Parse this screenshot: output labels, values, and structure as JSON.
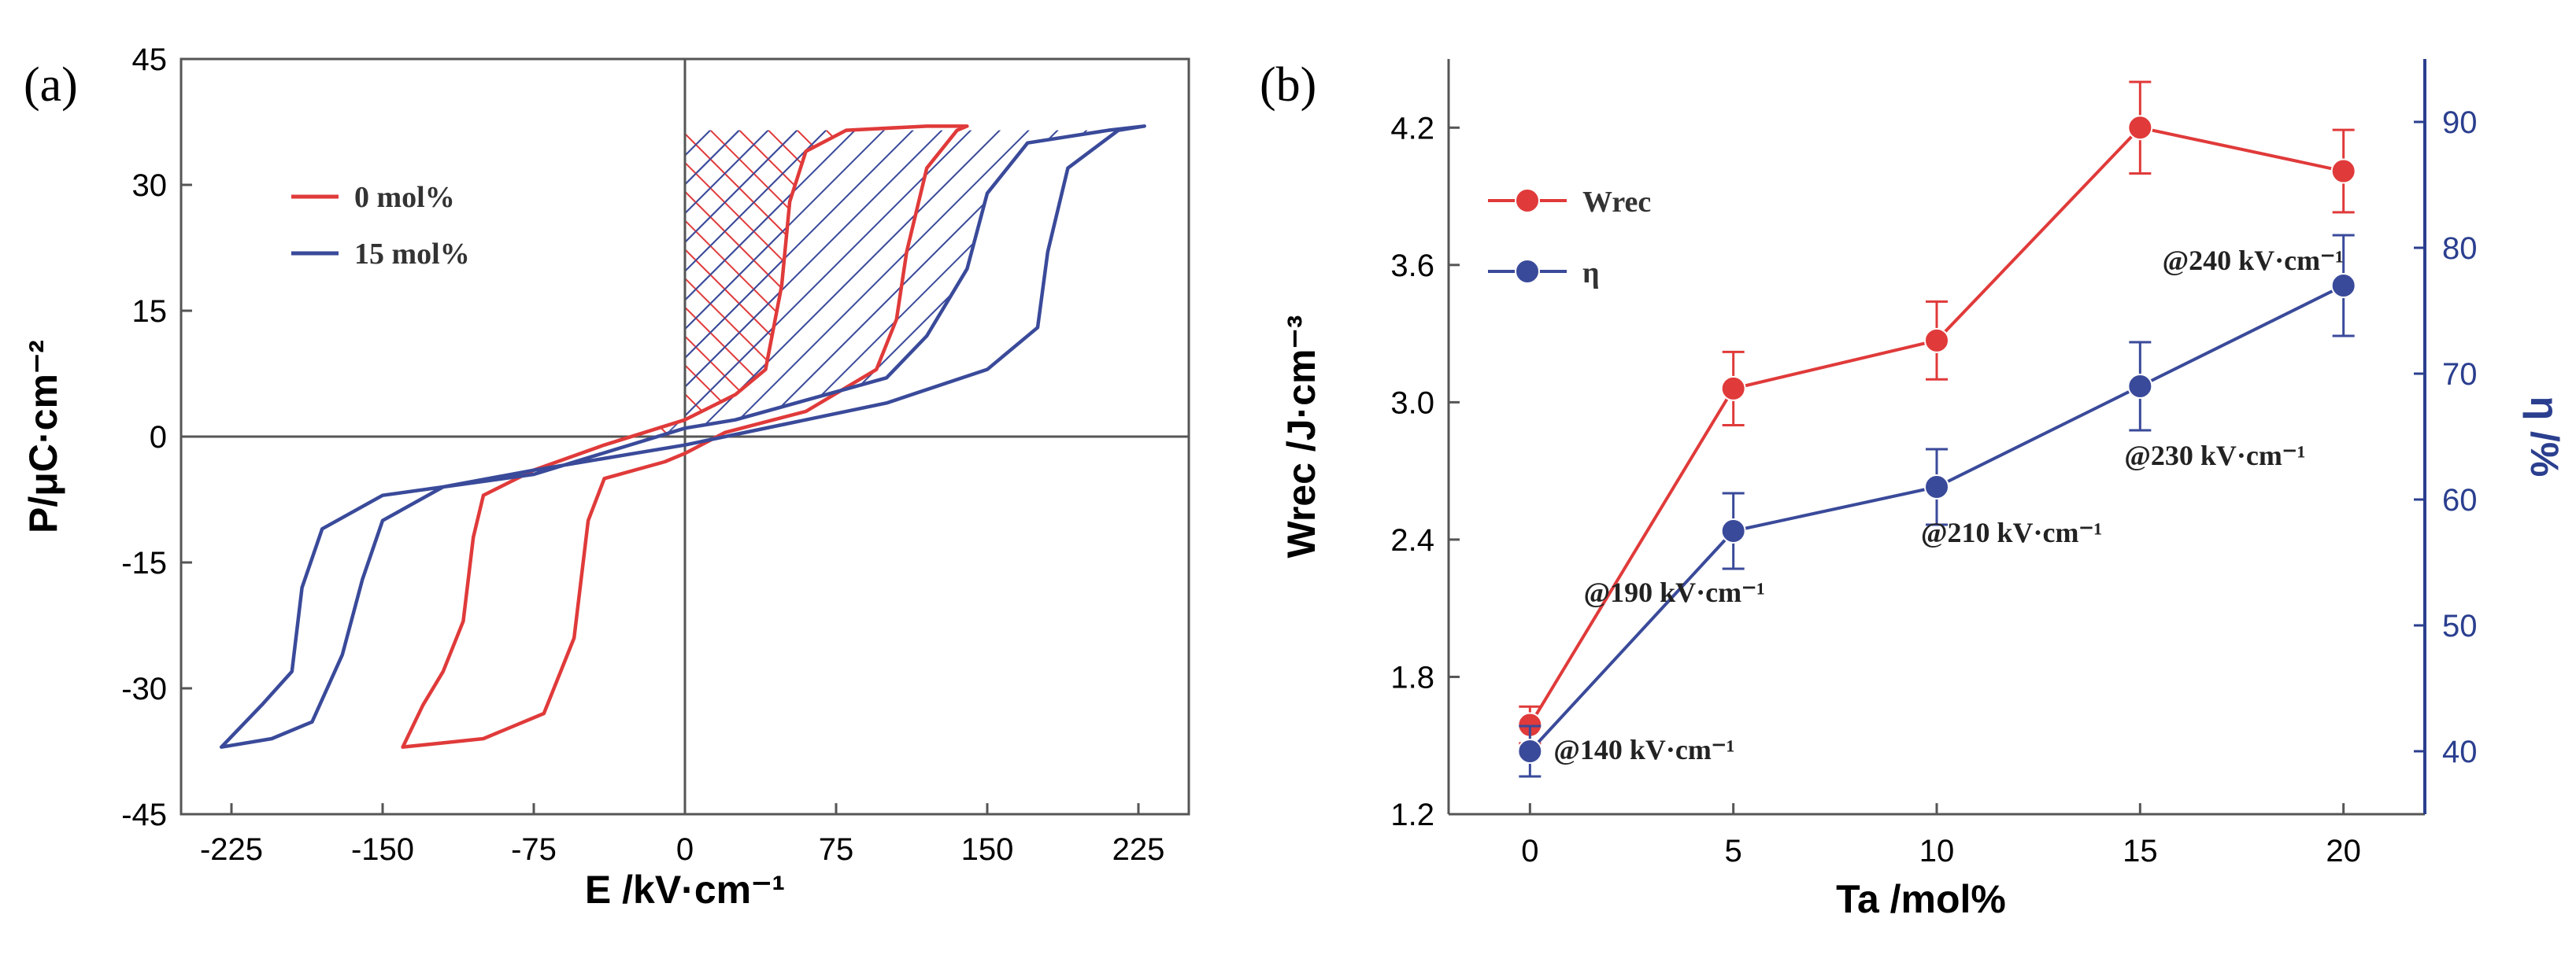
{
  "chart_data": [
    {
      "panel": "(a)",
      "type": "line",
      "title": "",
      "xlabel": "E /kV·cm⁻¹",
      "ylabel": "P/μC·cm⁻²",
      "xlim": [
        -250,
        250
      ],
      "ylim": [
        -45,
        45
      ],
      "xticks": [
        -225,
        -150,
        -75,
        0,
        75,
        150,
        225
      ],
      "yticks": [
        -45,
        -30,
        -15,
        0,
        15,
        30,
        45
      ],
      "legend_position": "upper-left",
      "series": [
        {
          "name": "0 mol%",
          "color": "#e03a3a",
          "upper": [
            [
              -140,
              -37
            ],
            [
              -120,
              -36.5
            ],
            [
              -100,
              -36
            ],
            [
              -70,
              -33
            ],
            [
              -55,
              -24
            ],
            [
              -48,
              -10
            ],
            [
              -40,
              -5
            ],
            [
              -10,
              -3
            ],
            [
              0,
              -2
            ],
            [
              20,
              0.5
            ],
            [
              60,
              3
            ],
            [
              95,
              8
            ],
            [
              105,
              14
            ],
            [
              110,
              22
            ],
            [
              120,
              32
            ],
            [
              135,
              36.5
            ],
            [
              140,
              37
            ]
          ],
          "lower": [
            [
              -140,
              -37
            ],
            [
              -130,
              -32
            ],
            [
              -120,
              -28
            ],
            [
              -110,
              -22
            ],
            [
              -105,
              -12
            ],
            [
              -100,
              -7
            ],
            [
              -75,
              -4
            ],
            [
              -40,
              -1
            ],
            [
              0,
              2
            ],
            [
              25,
              5
            ],
            [
              40,
              8
            ],
            [
              48,
              18
            ],
            [
              52,
              28
            ],
            [
              60,
              34
            ],
            [
              80,
              36.5
            ],
            [
              120,
              37
            ],
            [
              140,
              37
            ]
          ]
        },
        {
          "name": "15 mol%",
          "color": "#3a4a9a",
          "upper": [
            [
              -230,
              -37
            ],
            [
              -205,
              -36
            ],
            [
              -185,
              -34
            ],
            [
              -170,
              -26
            ],
            [
              -160,
              -17
            ],
            [
              -150,
              -10
            ],
            [
              -120,
              -6
            ],
            [
              -75,
              -4
            ],
            [
              -25,
              -2
            ],
            [
              0,
              -1
            ],
            [
              50,
              1.5
            ],
            [
              100,
              4
            ],
            [
              150,
              8
            ],
            [
              175,
              13
            ],
            [
              180,
              22
            ],
            [
              190,
              32
            ],
            [
              215,
              36.5
            ],
            [
              228,
              37
            ]
          ],
          "lower": [
            [
              -230,
              -37
            ],
            [
              -210,
              -32
            ],
            [
              -195,
              -28
            ],
            [
              -190,
              -18
            ],
            [
              -180,
              -11
            ],
            [
              -150,
              -7
            ],
            [
              -75,
              -4.5
            ],
            [
              0,
              1
            ],
            [
              25,
              2
            ],
            [
              100,
              7
            ],
            [
              120,
              12
            ],
            [
              140,
              20
            ],
            [
              150,
              29
            ],
            [
              170,
              35
            ],
            [
              210,
              36.5
            ],
            [
              228,
              37
            ]
          ]
        }
      ],
      "hatched_regions": [
        {
          "series": "0 mol%",
          "pattern": "cross-hatch",
          "color": "#e03a3a",
          "p_max": 36.5,
          "e_max": 140
        },
        {
          "series": "15 mol%",
          "pattern": "diagonal-hatch",
          "color": "#3a4a9a",
          "p_max": 36.5,
          "e_max": 228
        }
      ]
    },
    {
      "panel": "(b)",
      "type": "line",
      "title": "",
      "xlabel": "Ta /mol%",
      "ylabel_left": "Wrec /J·cm⁻³",
      "ylabel_right": "η /%",
      "x": [
        0,
        5,
        10,
        15,
        20
      ],
      "xticks": [
        0,
        5,
        10,
        15,
        20
      ],
      "xlim": [
        -2,
        22
      ],
      "ylim_left": [
        1.2,
        4.5
      ],
      "yticks_left": [
        1.2,
        1.8,
        2.4,
        3.0,
        3.6,
        4.2
      ],
      "ylim_right": [
        35,
        95
      ],
      "yticks_right": [
        40,
        50,
        60,
        70,
        80,
        90
      ],
      "legend_position": "upper-left",
      "series": [
        {
          "name": "Wrec",
          "axis": "left",
          "color": "#e03a3a",
          "values": [
            1.59,
            3.06,
            3.27,
            4.2,
            4.01
          ],
          "errors": [
            0.08,
            0.16,
            0.17,
            0.2,
            0.18
          ]
        },
        {
          "name": "η",
          "axis": "right",
          "color": "#3a4a9a",
          "values": [
            40.0,
            57.5,
            61.0,
            69.0,
            77.0
          ],
          "errors": [
            2.0,
            3.0,
            3.0,
            3.5,
            4.0
          ]
        }
      ],
      "annotations": [
        {
          "text": "@140 kV·cm⁻¹",
          "x": 0,
          "series_value": 40.0
        },
        {
          "text": "@190 kV·cm⁻¹",
          "x": 5,
          "series_value": 57.5
        },
        {
          "text": "@210 kV·cm⁻¹",
          "x": 10,
          "series_value": 61.0
        },
        {
          "text": "@230 kV·cm⁻¹",
          "x": 15,
          "series_value": 69.0
        },
        {
          "text": "@240 kV·cm⁻¹",
          "x": 20,
          "series_value": 77.0
        }
      ]
    }
  ]
}
